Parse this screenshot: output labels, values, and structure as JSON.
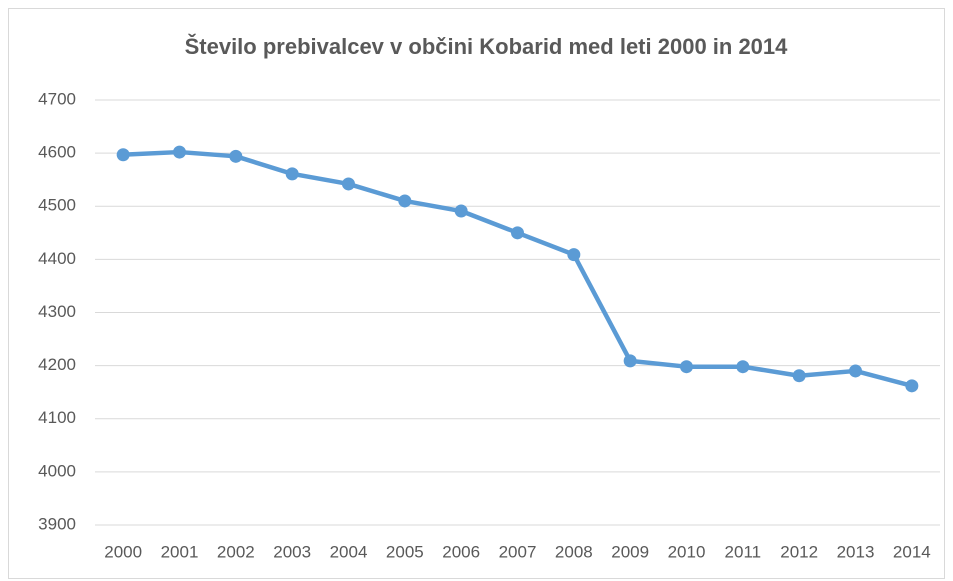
{
  "chart_data": {
    "type": "line",
    "title": "Število prebivalcev v občini Kobarid med leti 2000 in 2014",
    "categories": [
      "2000",
      "2001",
      "2002",
      "2003",
      "2004",
      "2005",
      "2006",
      "2007",
      "2008",
      "2009",
      "2010",
      "2011",
      "2012",
      "2013",
      "2014"
    ],
    "series": [
      {
        "name": "Število prebivalcev",
        "color": "#5b9bd5",
        "values": [
          4597,
          4602,
          4594,
          4561,
          4542,
          4510,
          4491,
          4450,
          4409,
          4209,
          4198,
          4198,
          4181,
          4190,
          4162
        ]
      }
    ],
    "ylim": [
      3900,
      4700
    ],
    "yticks": [
      3900,
      4000,
      4100,
      4200,
      4300,
      4400,
      4500,
      4600,
      4700
    ],
    "grid": true,
    "legend": false
  }
}
